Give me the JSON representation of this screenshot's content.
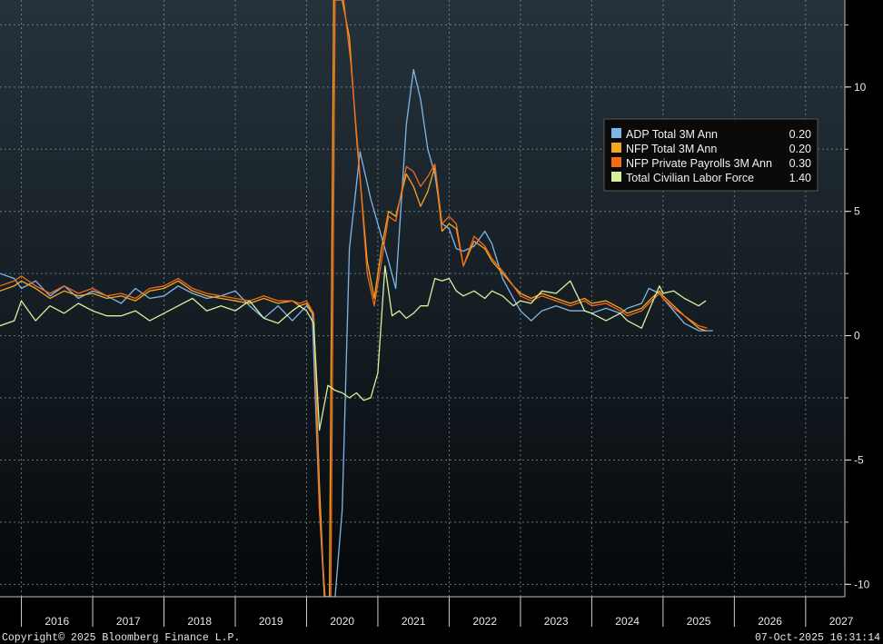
{
  "chart_data": {
    "type": "line",
    "title": "",
    "xlabel": "",
    "ylabel": "",
    "xlim": [
      2015.7,
      2027.55
    ],
    "ylim": [
      -10.5,
      13.5
    ],
    "grid": true,
    "y_ticks": [
      10,
      5,
      0,
      -5,
      -10
    ],
    "y_tick_labels": [
      "10",
      "5",
      "0",
      "-5",
      "-10"
    ],
    "years": [
      "2016",
      "2017",
      "2018",
      "2019",
      "2020",
      "2021",
      "2022",
      "2023",
      "2024",
      "2025",
      "2026",
      "2027"
    ],
    "legend": {
      "position": "upper-right",
      "entries": [
        {
          "name": "ADP Total 3M Ann",
          "value": "0.20",
          "color": "#7fb6ea"
        },
        {
          "name": "NFP Total 3M Ann",
          "value": "0.20",
          "color": "#f5a623"
        },
        {
          "name": "NFP Private Payrolls 3M Ann",
          "value": "0.30",
          "color": "#f26a1b"
        },
        {
          "name": "Total Civilian Labor Force",
          "value": "1.40",
          "color": "#d6f0a0"
        }
      ]
    },
    "series": [
      {
        "name": "ADP Total 3M Ann",
        "color": "#7fb6ea",
        "points": [
          [
            2015.7,
            2.5
          ],
          [
            2015.9,
            2.3
          ],
          [
            2016.0,
            1.9
          ],
          [
            2016.2,
            2.2
          ],
          [
            2016.4,
            1.6
          ],
          [
            2016.6,
            2.0
          ],
          [
            2016.8,
            1.5
          ],
          [
            2017.0,
            1.8
          ],
          [
            2017.2,
            1.6
          ],
          [
            2017.4,
            1.3
          ],
          [
            2017.6,
            1.9
          ],
          [
            2017.8,
            1.5
          ],
          [
            2018.0,
            1.6
          ],
          [
            2018.2,
            2.0
          ],
          [
            2018.4,
            1.7
          ],
          [
            2018.6,
            1.5
          ],
          [
            2018.8,
            1.6
          ],
          [
            2019.0,
            1.8
          ],
          [
            2019.2,
            1.2
          ],
          [
            2019.4,
            0.7
          ],
          [
            2019.6,
            1.2
          ],
          [
            2019.8,
            0.6
          ],
          [
            2019.9,
            0.9
          ],
          [
            2020.0,
            1.2
          ],
          [
            2020.08,
            0.9
          ],
          [
            2020.18,
            -7.0
          ],
          [
            2020.25,
            -10.5
          ],
          [
            2020.4,
            -10.5
          ],
          [
            2020.5,
            -7.0
          ],
          [
            2020.6,
            3.5
          ],
          [
            2020.75,
            7.4
          ],
          [
            2020.9,
            5.5
          ],
          [
            2021.0,
            4.5
          ],
          [
            2021.15,
            3.0
          ],
          [
            2021.25,
            1.9
          ],
          [
            2021.4,
            8.5
          ],
          [
            2021.5,
            10.7
          ],
          [
            2021.6,
            9.5
          ],
          [
            2021.7,
            7.5
          ],
          [
            2021.8,
            6.5
          ],
          [
            2021.9,
            4.5
          ],
          [
            2022.0,
            4.3
          ],
          [
            2022.1,
            3.5
          ],
          [
            2022.2,
            3.4
          ],
          [
            2022.35,
            3.6
          ],
          [
            2022.5,
            4.2
          ],
          [
            2022.6,
            3.7
          ],
          [
            2022.75,
            2.3
          ],
          [
            2022.9,
            1.5
          ],
          [
            2023.0,
            1.0
          ],
          [
            2023.15,
            0.6
          ],
          [
            2023.3,
            1.0
          ],
          [
            2023.5,
            1.2
          ],
          [
            2023.7,
            1.0
          ],
          [
            2023.9,
            1.0
          ],
          [
            2024.0,
            0.9
          ],
          [
            2024.2,
            1.1
          ],
          [
            2024.4,
            0.9
          ],
          [
            2024.5,
            1.1
          ],
          [
            2024.7,
            1.3
          ],
          [
            2024.8,
            1.9
          ],
          [
            2024.95,
            1.7
          ],
          [
            2025.0,
            1.5
          ],
          [
            2025.15,
            1.0
          ],
          [
            2025.3,
            0.5
          ],
          [
            2025.5,
            0.2
          ],
          [
            2025.7,
            0.2
          ]
        ]
      },
      {
        "name": "NFP Total 3M Ann",
        "color": "#f5a623",
        "points": [
          [
            2015.7,
            1.8
          ],
          [
            2015.9,
            2.0
          ],
          [
            2016.0,
            2.2
          ],
          [
            2016.2,
            1.9
          ],
          [
            2016.4,
            1.5
          ],
          [
            2016.6,
            1.8
          ],
          [
            2016.8,
            1.6
          ],
          [
            2017.0,
            1.7
          ],
          [
            2017.2,
            1.5
          ],
          [
            2017.4,
            1.6
          ],
          [
            2017.6,
            1.4
          ],
          [
            2017.8,
            1.8
          ],
          [
            2018.0,
            1.9
          ],
          [
            2018.2,
            2.2
          ],
          [
            2018.4,
            1.8
          ],
          [
            2018.6,
            1.6
          ],
          [
            2018.8,
            1.5
          ],
          [
            2019.0,
            1.4
          ],
          [
            2019.2,
            1.3
          ],
          [
            2019.4,
            1.5
          ],
          [
            2019.6,
            1.3
          ],
          [
            2019.8,
            1.4
          ],
          [
            2019.9,
            1.2
          ],
          [
            2020.0,
            1.3
          ],
          [
            2020.1,
            0.8
          ],
          [
            2020.18,
            -6.0
          ],
          [
            2020.25,
            -10.5
          ],
          [
            2020.32,
            -10.5
          ],
          [
            2020.38,
            13.5
          ],
          [
            2020.5,
            13.5
          ],
          [
            2020.6,
            12.0
          ],
          [
            2020.7,
            8.0
          ],
          [
            2020.85,
            3.0
          ],
          [
            2020.95,
            1.5
          ],
          [
            2021.05,
            3.5
          ],
          [
            2021.15,
            5.0
          ],
          [
            2021.25,
            4.8
          ],
          [
            2021.4,
            6.5
          ],
          [
            2021.5,
            6.0
          ],
          [
            2021.6,
            5.2
          ],
          [
            2021.7,
            5.8
          ],
          [
            2021.8,
            6.8
          ],
          [
            2021.9,
            4.2
          ],
          [
            2022.0,
            4.5
          ],
          [
            2022.1,
            4.3
          ],
          [
            2022.2,
            2.8
          ],
          [
            2022.35,
            3.8
          ],
          [
            2022.5,
            3.5
          ],
          [
            2022.6,
            3.0
          ],
          [
            2022.75,
            2.5
          ],
          [
            2022.9,
            2.0
          ],
          [
            2023.0,
            1.7
          ],
          [
            2023.15,
            1.5
          ],
          [
            2023.3,
            1.7
          ],
          [
            2023.5,
            1.5
          ],
          [
            2023.7,
            1.3
          ],
          [
            2023.9,
            1.5
          ],
          [
            2024.0,
            1.3
          ],
          [
            2024.2,
            1.4
          ],
          [
            2024.4,
            1.1
          ],
          [
            2024.5,
            0.9
          ],
          [
            2024.7,
            1.1
          ],
          [
            2024.8,
            1.4
          ],
          [
            2024.95,
            1.8
          ],
          [
            2025.0,
            1.6
          ],
          [
            2025.15,
            1.2
          ],
          [
            2025.3,
            0.8
          ],
          [
            2025.5,
            0.3
          ],
          [
            2025.6,
            0.2
          ]
        ]
      },
      {
        "name": "NFP Private Payrolls 3M Ann",
        "color": "#f26a1b",
        "points": [
          [
            2015.7,
            2.0
          ],
          [
            2015.9,
            2.2
          ],
          [
            2016.0,
            2.4
          ],
          [
            2016.2,
            2.0
          ],
          [
            2016.4,
            1.7
          ],
          [
            2016.6,
            2.0
          ],
          [
            2016.8,
            1.7
          ],
          [
            2017.0,
            1.9
          ],
          [
            2017.2,
            1.6
          ],
          [
            2017.4,
            1.7
          ],
          [
            2017.6,
            1.5
          ],
          [
            2017.8,
            1.9
          ],
          [
            2018.0,
            2.0
          ],
          [
            2018.2,
            2.3
          ],
          [
            2018.4,
            1.9
          ],
          [
            2018.6,
            1.7
          ],
          [
            2018.8,
            1.6
          ],
          [
            2019.0,
            1.5
          ],
          [
            2019.2,
            1.4
          ],
          [
            2019.4,
            1.6
          ],
          [
            2019.6,
            1.4
          ],
          [
            2019.8,
            1.4
          ],
          [
            2019.9,
            1.3
          ],
          [
            2020.0,
            1.4
          ],
          [
            2020.1,
            0.9
          ],
          [
            2020.18,
            -7.0
          ],
          [
            2020.26,
            -10.5
          ],
          [
            2020.34,
            -10.5
          ],
          [
            2020.4,
            13.5
          ],
          [
            2020.52,
            13.5
          ],
          [
            2020.62,
            11.0
          ],
          [
            2020.72,
            7.5
          ],
          [
            2020.85,
            2.5
          ],
          [
            2020.95,
            1.2
          ],
          [
            2021.05,
            3.0
          ],
          [
            2021.15,
            4.8
          ],
          [
            2021.25,
            4.6
          ],
          [
            2021.4,
            6.8
          ],
          [
            2021.5,
            6.6
          ],
          [
            2021.6,
            6.0
          ],
          [
            2021.7,
            6.4
          ],
          [
            2021.8,
            6.9
          ],
          [
            2021.9,
            4.5
          ],
          [
            2022.0,
            4.8
          ],
          [
            2022.1,
            4.5
          ],
          [
            2022.2,
            2.8
          ],
          [
            2022.35,
            4.0
          ],
          [
            2022.5,
            3.6
          ],
          [
            2022.6,
            3.1
          ],
          [
            2022.75,
            2.6
          ],
          [
            2022.9,
            2.0
          ],
          [
            2023.0,
            1.6
          ],
          [
            2023.15,
            1.4
          ],
          [
            2023.3,
            1.6
          ],
          [
            2023.5,
            1.4
          ],
          [
            2023.7,
            1.2
          ],
          [
            2023.9,
            1.4
          ],
          [
            2024.0,
            1.2
          ],
          [
            2024.2,
            1.3
          ],
          [
            2024.4,
            1.0
          ],
          [
            2024.5,
            0.8
          ],
          [
            2024.7,
            1.0
          ],
          [
            2024.8,
            1.3
          ],
          [
            2024.95,
            1.7
          ],
          [
            2025.0,
            1.5
          ],
          [
            2025.15,
            1.1
          ],
          [
            2025.3,
            0.8
          ],
          [
            2025.5,
            0.4
          ],
          [
            2025.62,
            0.3
          ]
        ]
      },
      {
        "name": "Total Civilian Labor Force",
        "color": "#d6f0a0",
        "points": [
          [
            2015.7,
            0.4
          ],
          [
            2015.9,
            0.6
          ],
          [
            2016.0,
            1.4
          ],
          [
            2016.2,
            0.6
          ],
          [
            2016.4,
            1.2
          ],
          [
            2016.6,
            0.9
          ],
          [
            2016.8,
            1.3
          ],
          [
            2017.0,
            1.0
          ],
          [
            2017.2,
            0.8
          ],
          [
            2017.4,
            0.8
          ],
          [
            2017.6,
            1.0
          ],
          [
            2017.8,
            0.6
          ],
          [
            2018.0,
            0.9
          ],
          [
            2018.2,
            1.2
          ],
          [
            2018.4,
            1.5
          ],
          [
            2018.6,
            1.0
          ],
          [
            2018.8,
            1.2
          ],
          [
            2019.0,
            1.0
          ],
          [
            2019.2,
            1.4
          ],
          [
            2019.4,
            0.7
          ],
          [
            2019.6,
            0.5
          ],
          [
            2019.8,
            1.0
          ],
          [
            2019.9,
            1.2
          ],
          [
            2020.0,
            1.0
          ],
          [
            2020.1,
            0.5
          ],
          [
            2020.18,
            -3.8
          ],
          [
            2020.3,
            -2.0
          ],
          [
            2020.4,
            -2.2
          ],
          [
            2020.5,
            -2.3
          ],
          [
            2020.6,
            -2.5
          ],
          [
            2020.7,
            -2.3
          ],
          [
            2020.8,
            -2.6
          ],
          [
            2020.9,
            -2.5
          ],
          [
            2021.0,
            -1.5
          ],
          [
            2021.1,
            2.8
          ],
          [
            2021.2,
            0.8
          ],
          [
            2021.3,
            1.0
          ],
          [
            2021.4,
            0.7
          ],
          [
            2021.5,
            0.9
          ],
          [
            2021.6,
            1.2
          ],
          [
            2021.7,
            1.2
          ],
          [
            2021.8,
            2.3
          ],
          [
            2021.9,
            2.2
          ],
          [
            2022.0,
            2.3
          ],
          [
            2022.1,
            1.8
          ],
          [
            2022.2,
            1.6
          ],
          [
            2022.35,
            1.8
          ],
          [
            2022.5,
            1.5
          ],
          [
            2022.6,
            1.8
          ],
          [
            2022.75,
            1.6
          ],
          [
            2022.9,
            1.2
          ],
          [
            2023.0,
            1.4
          ],
          [
            2023.15,
            1.3
          ],
          [
            2023.3,
            1.8
          ],
          [
            2023.5,
            1.7
          ],
          [
            2023.7,
            2.2
          ],
          [
            2023.9,
            1.0
          ],
          [
            2024.0,
            0.9
          ],
          [
            2024.2,
            0.6
          ],
          [
            2024.4,
            0.9
          ],
          [
            2024.5,
            0.6
          ],
          [
            2024.7,
            0.3
          ],
          [
            2024.8,
            1.0
          ],
          [
            2024.95,
            2.0
          ],
          [
            2025.0,
            1.7
          ],
          [
            2025.15,
            1.8
          ],
          [
            2025.3,
            1.5
          ],
          [
            2025.5,
            1.2
          ],
          [
            2025.6,
            1.4
          ]
        ]
      }
    ]
  },
  "footer": {
    "copyright": "Copyright© 2025 Bloomberg Finance L.P.",
    "timestamp": "07-Oct-2025 16:31:14"
  }
}
